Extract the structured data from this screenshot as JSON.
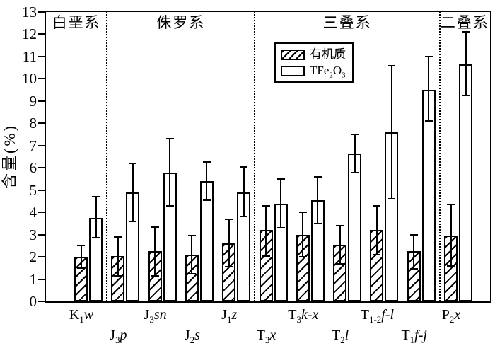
{
  "figure": {
    "y_axis_title": "含量(%)",
    "colors": {
      "ink": "#000000",
      "background": "#ffffff"
    }
  },
  "legend": {
    "items": [
      {
        "swatch": "hatched",
        "label": "有机质"
      },
      {
        "swatch": "open",
        "label": "TFe₂O₃",
        "label_parts": [
          {
            "text": "TFe"
          },
          {
            "sub": "2"
          },
          {
            "text": "O"
          },
          {
            "sub": "3"
          }
        ]
      }
    ]
  },
  "chart_data": {
    "type": "bar",
    "title": "",
    "xlabel": "",
    "ylabel": "含量(%)",
    "ylim": [
      0,
      13
    ],
    "y_ticks": [
      0,
      1,
      2,
      3,
      4,
      5,
      6,
      7,
      8,
      9,
      10,
      11,
      12,
      13
    ],
    "grid": false,
    "error_bars": true,
    "legend_position": "inside-top, right of center",
    "categories": [
      "K₁w",
      "J₃p",
      "J₃sn",
      "J₂s",
      "J₁z",
      "T₃x",
      "T₃k-x",
      "T₂l",
      "T₁₋₂f-l",
      "T₁f-j",
      "P₂x"
    ],
    "categories_rich": [
      {
        "base": "K",
        "sub": "1",
        "it": "w"
      },
      {
        "base": "J",
        "sub": "3",
        "it": "p"
      },
      {
        "base": "J",
        "sub": "3",
        "it": "sn"
      },
      {
        "base": "J",
        "sub": "2",
        "it": "s"
      },
      {
        "base": "J",
        "sub": "1",
        "it": "z"
      },
      {
        "base": "T",
        "sub": "3",
        "it": "x"
      },
      {
        "base": "T",
        "sub": "3",
        "it": "k-x"
      },
      {
        "base": "T",
        "sub": "2",
        "it": "l"
      },
      {
        "base": "T",
        "sub": "1-2",
        "it": "f-l"
      },
      {
        "base": "T",
        "sub": "1",
        "it": "f-j"
      },
      {
        "base": "P",
        "sub": "2",
        "it": "x"
      }
    ],
    "regions": [
      {
        "label": "白垩系",
        "categories": [
          "K₁w"
        ]
      },
      {
        "label": "侏罗系",
        "categories": [
          "J₃p",
          "J₃sn",
          "J₂s",
          "J₁z"
        ]
      },
      {
        "label": "三叠系",
        "categories": [
          "T₃x",
          "T₃k-x",
          "T₂l",
          "T₁₋₂f-l",
          "T₁f-j"
        ]
      },
      {
        "label": "二叠系",
        "categories": [
          "P₂x"
        ]
      }
    ],
    "dividers_after_category_index": [
      0,
      4,
      9
    ],
    "series": [
      {
        "name": "有机质",
        "style": "hatched",
        "values": [
          2.0,
          2.05,
          2.25,
          2.1,
          2.6,
          3.2,
          3.0,
          2.55,
          3.2,
          2.25,
          2.95
        ],
        "err_low": [
          1.5,
          1.15,
          1.15,
          1.25,
          1.55,
          2.05,
          2.0,
          1.7,
          2.1,
          1.45,
          1.6
        ],
        "err_high": [
          2.5,
          2.9,
          3.35,
          2.95,
          3.7,
          4.3,
          4.0,
          3.4,
          4.3,
          3.0,
          4.35
        ]
      },
      {
        "name": "TFe₂O₃",
        "style": "open",
        "values": [
          3.75,
          4.9,
          5.8,
          5.4,
          4.9,
          4.4,
          4.55,
          6.65,
          7.6,
          9.5,
          10.65
        ],
        "err_low": [
          2.85,
          3.6,
          4.3,
          4.55,
          3.8,
          3.3,
          3.5,
          5.8,
          4.6,
          8.1,
          9.25
        ],
        "err_high": [
          4.7,
          6.2,
          7.3,
          6.25,
          6.05,
          5.5,
          5.6,
          7.5,
          10.6,
          11.0,
          12.1
        ]
      }
    ]
  }
}
